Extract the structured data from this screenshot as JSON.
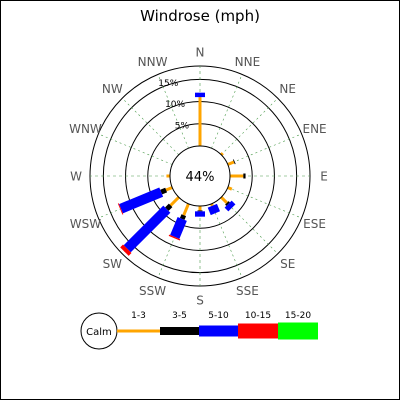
{
  "chart_data": {
    "type": "windrose",
    "title": "Windrose (mph)",
    "calm_label": "Calm",
    "calm_value": "44%",
    "directions": [
      "N",
      "NNE",
      "NE",
      "ENE",
      "E",
      "ESE",
      "SE",
      "SSE",
      "S",
      "SSW",
      "SW",
      "WSW",
      "W",
      "WNW",
      "NW",
      "NNW"
    ],
    "radial_ticks": [
      {
        "label": "5%",
        "value": 5
      },
      {
        "label": "10%",
        "value": 10
      },
      {
        "label": "15%",
        "value": 15
      }
    ],
    "rmax": 18,
    "bins": [
      {
        "label": "1-3",
        "color": "#FFA500"
      },
      {
        "label": "3-5",
        "color": "#000000"
      },
      {
        "label": "5-10",
        "color": "#0000FF"
      },
      {
        "label": "10-15",
        "color": "#FF0000"
      },
      {
        "label": "15-20",
        "color": "#00FF00"
      }
    ],
    "data": [
      [
        11.0,
        0,
        1.0,
        0,
        0
      ],
      [
        0,
        0,
        0,
        0,
        0
      ],
      [
        0.5,
        0,
        0,
        0,
        0
      ],
      [
        1.5,
        0.2,
        0,
        0,
        0
      ],
      [
        3.0,
        0.5,
        0,
        0,
        0
      ],
      [
        1.0,
        0,
        0,
        0,
        0
      ],
      [
        1.8,
        0.4,
        1.2,
        0,
        0
      ],
      [
        0.5,
        0,
        1.8,
        0,
        0
      ],
      [
        1.0,
        0.2,
        1.2,
        0,
        0
      ],
      [
        2.8,
        0.9,
        4.4,
        0.3,
        0
      ],
      [
        2.6,
        1.2,
        12.6,
        0.9,
        0
      ],
      [
        1.5,
        1.2,
        9.8,
        0.2,
        0
      ],
      [
        0.8,
        0,
        0,
        0,
        0
      ],
      [
        0,
        0,
        0,
        0,
        0
      ],
      [
        0,
        0,
        0,
        0,
        0
      ],
      [
        0,
        0,
        0,
        0,
        0
      ]
    ]
  }
}
